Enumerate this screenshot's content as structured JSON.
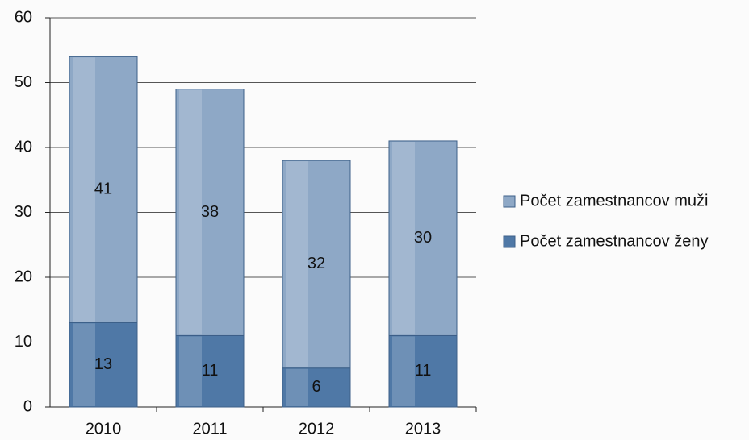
{
  "chart_data": {
    "type": "bar",
    "stacked": true,
    "categories": [
      "2010",
      "2011",
      "2012",
      "2013"
    ],
    "series": [
      {
        "name": "Počet zamestnancov ženy",
        "color": "#4f78a6",
        "values": [
          13,
          11,
          6,
          11
        ]
      },
      {
        "name": "Počet zamestnancov muži",
        "color": "#8ea8c6",
        "values": [
          41,
          38,
          32,
          30
        ]
      }
    ],
    "ylim": [
      0,
      60
    ],
    "yticks": [
      0,
      10,
      20,
      30,
      40,
      50,
      60
    ],
    "grid": true
  }
}
